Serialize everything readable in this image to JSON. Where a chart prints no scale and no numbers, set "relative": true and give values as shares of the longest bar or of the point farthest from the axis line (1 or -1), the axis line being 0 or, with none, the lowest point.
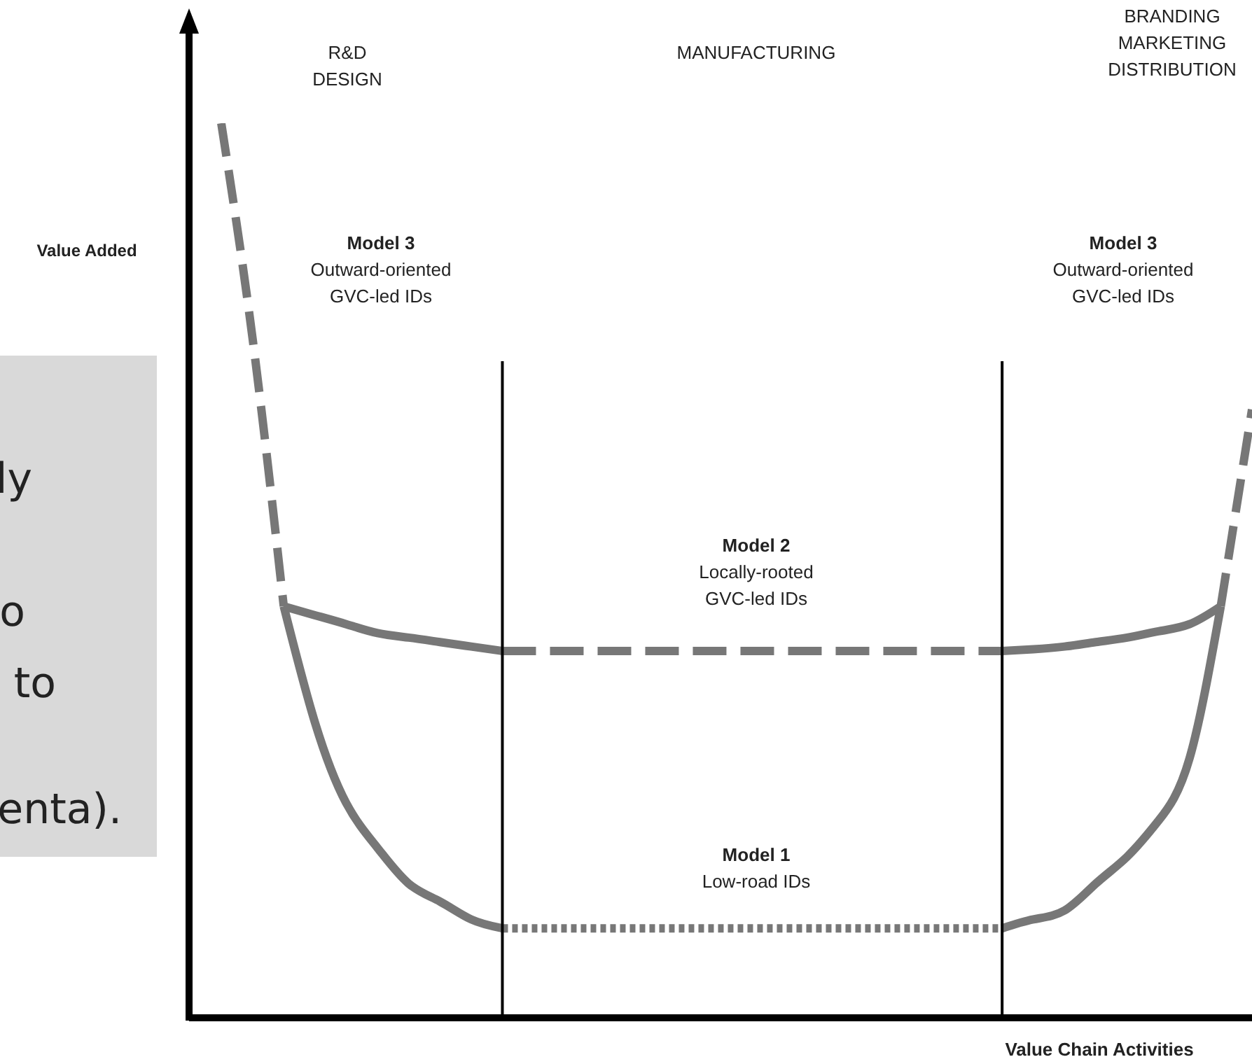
{
  "chart_data": {
    "type": "line",
    "relative": true,
    "ylabel": "Value Added",
    "xlabel": "Value Chain Activities",
    "categories": [
      null,
      null,
      null,
      null,
      null,
      null,
      null,
      null,
      null,
      null,
      null,
      null,
      null,
      null,
      null,
      null,
      null,
      null,
      null,
      null,
      null,
      null,
      null,
      null,
      null,
      null,
      null,
      null,
      null,
      null,
      null,
      null,
      null,
      null
    ],
    "series": [
      {
        "color": "#777777",
        "line_style": "dashed",
        "values": [
          1.0,
          0.76,
          0.46,
          null,
          null,
          null,
          null,
          null,
          null,
          null,
          null,
          null,
          null,
          null,
          null,
          null,
          null,
          null,
          null,
          null,
          null,
          null,
          null,
          null,
          null,
          null,
          null,
          null,
          null,
          null,
          null,
          null,
          null,
          null
        ]
      },
      {
        "color": "#777777",
        "line_style": "dashed",
        "values": [
          null,
          null,
          null,
          null,
          null,
          null,
          null,
          null,
          null,
          null,
          null,
          null,
          null,
          null,
          null,
          null,
          null,
          null,
          null,
          null,
          null,
          null,
          null,
          null,
          null,
          null,
          null,
          null,
          null,
          null,
          null,
          null,
          0.46,
          0.68
        ]
      },
      {
        "color": "#777777",
        "line_style": "solid",
        "values": [
          null,
          null,
          0.46,
          0.33,
          0.24,
          0.19,
          0.15,
          0.13,
          0.11,
          0.1,
          null,
          null,
          null,
          null,
          null,
          null,
          null,
          null,
          null,
          null,
          null,
          null,
          null,
          null,
          null,
          null,
          null,
          null,
          null,
          null,
          null,
          null,
          null,
          null
        ]
      },
      {
        "color": "#777777",
        "line_style": "dotted",
        "values": [
          null,
          null,
          null,
          null,
          null,
          null,
          null,
          null,
          null,
          0.1,
          0.1,
          0.1,
          0.1,
          0.1,
          0.1,
          0.1,
          0.1,
          0.1,
          0.1,
          0.1,
          0.1,
          0.1,
          0.1,
          0.1,
          0.1,
          0.1,
          null,
          null,
          null,
          null,
          null,
          null,
          null,
          null
        ]
      },
      {
        "color": "#777777",
        "line_style": "solid",
        "values": [
          null,
          null,
          null,
          null,
          null,
          null,
          null,
          null,
          null,
          null,
          null,
          null,
          null,
          null,
          null,
          null,
          null,
          null,
          null,
          null,
          null,
          null,
          null,
          null,
          null,
          0.1,
          0.11,
          0.12,
          0.15,
          0.18,
          0.22,
          0.29,
          0.46,
          null
        ]
      },
      {
        "color": "#777777",
        "line_style": "solid",
        "values": [
          null,
          null,
          0.46,
          0.45,
          0.44,
          0.43,
          0.425,
          0.42,
          0.415,
          0.41,
          null,
          null,
          null,
          null,
          null,
          null,
          null,
          null,
          null,
          null,
          null,
          null,
          null,
          null,
          null,
          null,
          null,
          null,
          null,
          null,
          null,
          null,
          null,
          null
        ]
      },
      {
        "color": "#777777",
        "line_style": "dashed",
        "values": [
          null,
          null,
          null,
          null,
          null,
          null,
          null,
          null,
          null,
          0.41,
          0.41,
          0.41,
          0.41,
          0.41,
          0.41,
          0.41,
          0.41,
          0.41,
          0.41,
          0.41,
          0.41,
          0.41,
          0.41,
          0.41,
          0.41,
          0.41,
          null,
          null,
          null,
          null,
          null,
          null,
          null,
          null
        ]
      },
      {
        "color": "#777777",
        "line_style": "solid",
        "values": [
          null,
          null,
          null,
          null,
          null,
          null,
          null,
          null,
          null,
          null,
          null,
          null,
          null,
          null,
          null,
          null,
          null,
          null,
          null,
          null,
          null,
          null,
          null,
          null,
          null,
          0.41,
          0.412,
          0.415,
          0.42,
          0.425,
          0.432,
          0.44,
          0.46,
          null
        ]
      }
    ],
    "annotations": [
      "R&D\nDESIGN",
      "MANUFACTURING",
      "BRANDING\nMARKETING\nDISTRIBUTION",
      "Model 3\nOutward-oriented\nGVC-led IDs",
      "Model 3\nOutward-oriented\nGVC-led IDs",
      "Model 2\nLocally-rooted\nGVC-led IDs",
      "Model 1\nLow-road IDs",
      "ly",
      "o",
      "to",
      "enta)."
    ]
  }
}
